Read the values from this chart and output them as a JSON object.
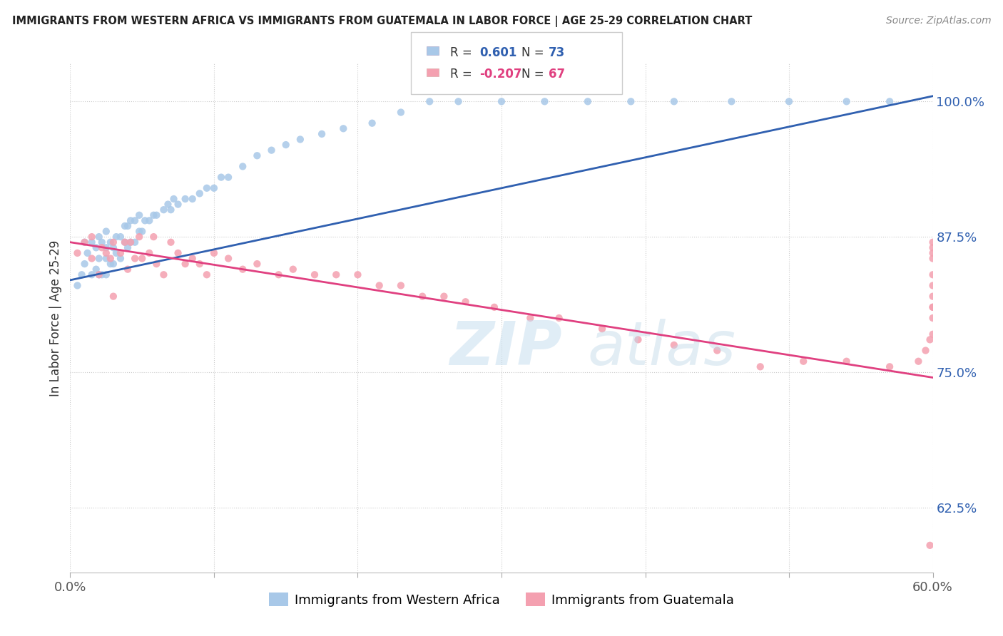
{
  "title": "IMMIGRANTS FROM WESTERN AFRICA VS IMMIGRANTS FROM GUATEMALA IN LABOR FORCE | AGE 25-29 CORRELATION CHART",
  "source": "Source: ZipAtlas.com",
  "xlabel_blue": "Immigrants from Western Africa",
  "xlabel_pink": "Immigrants from Guatemala",
  "ylabel": "In Labor Force | Age 25-29",
  "R_blue": 0.601,
  "N_blue": 73,
  "R_pink": -0.207,
  "N_pink": 67,
  "blue_color": "#a8c8e8",
  "pink_color": "#f4a0b0",
  "blue_line_color": "#3060b0",
  "pink_line_color": "#e04080",
  "blue_legend_color": "#a8c8e8",
  "pink_legend_color": "#f4a0b0",
  "R_value_color_blue": "#3060b0",
  "R_value_color_pink": "#e04080",
  "xmin": 0.0,
  "xmax": 0.6,
  "ymin": 0.565,
  "ymax": 1.035,
  "yticks": [
    0.625,
    0.75,
    0.875,
    1.0
  ],
  "ytick_labels": [
    "62.5%",
    "75.0%",
    "87.5%",
    "100.0%"
  ],
  "xticks": [
    0.0,
    0.1,
    0.2,
    0.3,
    0.4,
    0.5,
    0.6
  ],
  "xtick_labels": [
    "0.0%",
    "",
    "",
    "",
    "",
    "",
    "60.0%"
  ],
  "watermark_zip": "ZIP",
  "watermark_atlas": "atlas",
  "blue_scatter_x": [
    0.005,
    0.008,
    0.01,
    0.01,
    0.012,
    0.015,
    0.015,
    0.018,
    0.018,
    0.02,
    0.02,
    0.02,
    0.022,
    0.022,
    0.025,
    0.025,
    0.025,
    0.025,
    0.028,
    0.028,
    0.03,
    0.03,
    0.032,
    0.032,
    0.035,
    0.035,
    0.038,
    0.038,
    0.04,
    0.04,
    0.042,
    0.042,
    0.045,
    0.045,
    0.048,
    0.048,
    0.05,
    0.052,
    0.055,
    0.058,
    0.06,
    0.065,
    0.068,
    0.07,
    0.072,
    0.075,
    0.08,
    0.085,
    0.09,
    0.095,
    0.1,
    0.105,
    0.11,
    0.12,
    0.13,
    0.14,
    0.15,
    0.16,
    0.175,
    0.19,
    0.21,
    0.23,
    0.25,
    0.27,
    0.3,
    0.33,
    0.36,
    0.39,
    0.42,
    0.46,
    0.5,
    0.54,
    0.57
  ],
  "blue_scatter_y": [
    0.83,
    0.84,
    0.85,
    0.87,
    0.86,
    0.84,
    0.87,
    0.845,
    0.865,
    0.84,
    0.855,
    0.875,
    0.84,
    0.87,
    0.84,
    0.855,
    0.865,
    0.88,
    0.85,
    0.87,
    0.85,
    0.865,
    0.86,
    0.875,
    0.855,
    0.875,
    0.87,
    0.885,
    0.865,
    0.885,
    0.87,
    0.89,
    0.87,
    0.89,
    0.88,
    0.895,
    0.88,
    0.89,
    0.89,
    0.895,
    0.895,
    0.9,
    0.905,
    0.9,
    0.91,
    0.905,
    0.91,
    0.91,
    0.915,
    0.92,
    0.92,
    0.93,
    0.93,
    0.94,
    0.95,
    0.955,
    0.96,
    0.965,
    0.97,
    0.975,
    0.98,
    0.99,
    1.0,
    1.0,
    1.0,
    1.0,
    1.0,
    1.0,
    1.0,
    1.0,
    1.0,
    1.0,
    1.0
  ],
  "pink_scatter_x": [
    0.005,
    0.01,
    0.015,
    0.015,
    0.02,
    0.022,
    0.025,
    0.028,
    0.03,
    0.03,
    0.035,
    0.038,
    0.04,
    0.042,
    0.045,
    0.048,
    0.05,
    0.055,
    0.058,
    0.06,
    0.065,
    0.07,
    0.075,
    0.08,
    0.085,
    0.09,
    0.095,
    0.1,
    0.11,
    0.12,
    0.13,
    0.145,
    0.155,
    0.17,
    0.185,
    0.2,
    0.215,
    0.23,
    0.245,
    0.26,
    0.275,
    0.295,
    0.32,
    0.34,
    0.37,
    0.395,
    0.42,
    0.45,
    0.48,
    0.51,
    0.54,
    0.57,
    0.59,
    0.595,
    0.598,
    0.6,
    0.6,
    0.6,
    0.6,
    0.6,
    0.6,
    0.6,
    0.6,
    0.6,
    0.6,
    0.6,
    0.598
  ],
  "pink_scatter_y": [
    0.86,
    0.87,
    0.855,
    0.875,
    0.84,
    0.865,
    0.86,
    0.855,
    0.82,
    0.87,
    0.86,
    0.87,
    0.845,
    0.87,
    0.855,
    0.875,
    0.855,
    0.86,
    0.875,
    0.85,
    0.84,
    0.87,
    0.86,
    0.85,
    0.855,
    0.85,
    0.84,
    0.86,
    0.855,
    0.845,
    0.85,
    0.84,
    0.845,
    0.84,
    0.84,
    0.84,
    0.83,
    0.83,
    0.82,
    0.82,
    0.815,
    0.81,
    0.8,
    0.8,
    0.79,
    0.78,
    0.775,
    0.77,
    0.755,
    0.76,
    0.76,
    0.755,
    0.76,
    0.77,
    0.78,
    0.81,
    0.785,
    0.8,
    0.81,
    0.82,
    0.83,
    0.84,
    0.855,
    0.86,
    0.865,
    0.87,
    0.59
  ],
  "blue_line_x0": 0.0,
  "blue_line_x1": 0.6,
  "blue_line_y0": 0.835,
  "blue_line_y1": 1.005,
  "pink_line_x0": 0.0,
  "pink_line_x1": 0.6,
  "pink_line_y0": 0.87,
  "pink_line_y1": 0.745
}
